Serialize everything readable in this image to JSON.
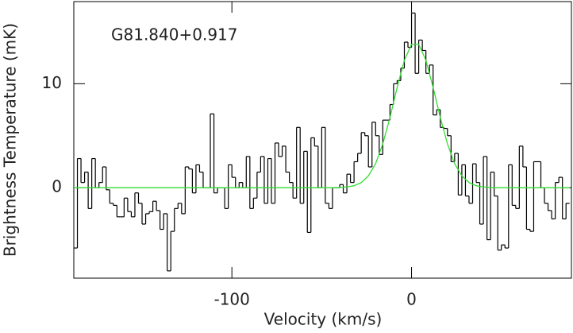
{
  "chart_data": {
    "type": "step",
    "xlabel": "Velocity (km/s)",
    "ylabel": "Brightness Temperature (mK)",
    "annotation": "G81.840+0.917",
    "xlim": [
      -188,
      89
    ],
    "ylim": [
      -8.7,
      17.9
    ],
    "xticks": [
      -100,
      0
    ],
    "yticks": [
      0,
      10
    ],
    "x": [
      -187,
      -185,
      -183,
      -181,
      -179,
      -177,
      -175,
      -173,
      -171,
      -169,
      -167,
      -165,
      -163,
      -161,
      -159,
      -157,
      -155,
      -153,
      -151,
      -149,
      -147,
      -145,
      -143,
      -141,
      -139,
      -137,
      -135,
      -133,
      -131,
      -129,
      -127,
      -125,
      -123,
      -121,
      -119,
      -117,
      -115,
      -113,
      -111,
      -109,
      -107,
      -105,
      -103,
      -101,
      -99,
      -97,
      -95,
      -93,
      -91,
      -89,
      -87,
      -85,
      -83,
      -81,
      -79,
      -77,
      -75,
      -73,
      -71,
      -69,
      -67,
      -65,
      -63,
      -61,
      -59,
      -57,
      -55,
      -53,
      -51,
      -49,
      -47,
      -45,
      -43,
      -41,
      -39,
      -37,
      -35,
      -33,
      -31,
      -29,
      -27,
      -25,
      -23,
      -21,
      -19,
      -17,
      -15,
      -13,
      -11,
      -9,
      -7,
      -5,
      -3,
      -1,
      1,
      3,
      5,
      7,
      9,
      11,
      13,
      15,
      17,
      19,
      21,
      23,
      25,
      27,
      29,
      31,
      33,
      35,
      37,
      39,
      41,
      43,
      45,
      47,
      49,
      51,
      53,
      55,
      57,
      59,
      61,
      63,
      65,
      67,
      69,
      71,
      73,
      75,
      77,
      79,
      81,
      83,
      85,
      87
    ],
    "series": [
      {
        "color": "#000000",
        "values": [
          -5.8,
          2.8,
          0.5,
          1.5,
          -2,
          2.8,
          0,
          0.5,
          2,
          -0.2,
          -1.5,
          -1.7,
          -2.8,
          -2.8,
          -1,
          -2.3,
          -2.8,
          -0.5,
          -1.5,
          -3.5,
          -2.5,
          -2.3,
          -1.3,
          -2.2,
          -4,
          -2.5,
          -8,
          -4.2,
          -2,
          -1.5,
          -2.5,
          2,
          1.8,
          -0.5,
          2.2,
          1.5,
          0,
          0,
          7.1,
          -0.5,
          0,
          0,
          -2,
          2.2,
          1,
          0,
          0.5,
          0,
          3,
          -2,
          -1,
          1.5,
          3,
          -1.5,
          2.8,
          -1.5,
          4.3,
          3,
          4,
          1.5,
          0.5,
          -1,
          5.8,
          -1.5,
          3.5,
          -4.3,
          4.8,
          4,
          0,
          5.8,
          -1.5,
          -2,
          0,
          0,
          0.3,
          -0.5,
          1.3,
          0.5,
          2.5,
          3.3,
          5.3,
          5,
          2,
          6.3,
          5,
          3.2,
          6.5,
          6.5,
          8,
          10,
          10.3,
          11.5,
          14,
          13.5,
          16.8,
          11,
          14.2,
          13.2,
          11,
          11.8,
          7,
          7.5,
          5.8,
          5.7,
          5,
          2.5,
          3.3,
          -0.7,
          2.2,
          -0.8,
          -1.5,
          2.3,
          0.5,
          -3.5,
          3,
          -5,
          1.5,
          -0.8,
          -6,
          -5.5,
          -5.8,
          2.2,
          -1.7,
          -2,
          4,
          2,
          -4,
          -4.2,
          2.5,
          2.5,
          0,
          -1.5,
          -2.2,
          -3,
          0.5,
          1,
          -3,
          -1.5
        ]
      }
    ],
    "fit": {
      "color": "#33dd33",
      "x": [
        -188,
        -184,
        -180,
        -176,
        -172,
        -168,
        -164,
        -160,
        -156,
        -152,
        -148,
        -144,
        -140,
        -136,
        -132,
        -128,
        -124,
        -120,
        -116,
        -112,
        -108,
        -104,
        -100,
        -96,
        -92,
        -88,
        -84,
        -80,
        -76,
        -72,
        -68,
        -64,
        -60,
        -56,
        -52,
        -48,
        -44,
        -40,
        -36,
        -32,
        -28,
        -24,
        -20,
        -16,
        -12,
        -8,
        -4,
        0,
        4,
        8,
        12,
        16,
        20,
        24,
        28,
        32,
        36,
        40,
        44,
        48,
        52,
        56,
        60,
        64,
        68,
        72,
        76,
        80,
        84,
        88
      ],
      "values": [
        0,
        0,
        0,
        0,
        0,
        0,
        0,
        0,
        0,
        0,
        0,
        0,
        0,
        0,
        0,
        0,
        0,
        0,
        0,
        0,
        0,
        0,
        0,
        0,
        0,
        0,
        0,
        0,
        0,
        0,
        0,
        0,
        0,
        0,
        0,
        0,
        0,
        0.02,
        0.07,
        0.19,
        0.49,
        1.14,
        2.31,
        4.21,
        6.75,
        9.65,
        12.25,
        13.79,
        13.79,
        12.25,
        9.65,
        6.75,
        4.21,
        2.31,
        1.14,
        0.49,
        0.19,
        0.07,
        0.02,
        0,
        0,
        0,
        0,
        0,
        0,
        0,
        0,
        0,
        0,
        0
      ]
    }
  }
}
